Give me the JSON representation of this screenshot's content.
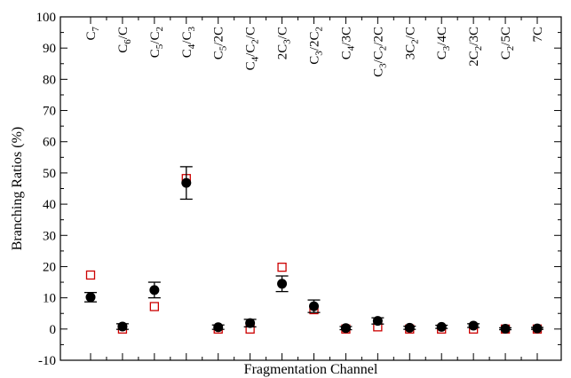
{
  "chart_data": {
    "type": "scatter",
    "title": "",
    "xlabel": "Fragmentation Channel",
    "ylabel": "Branching Ratios (%)",
    "ylim": [
      -10,
      100
    ],
    "yticks": [
      -10,
      0,
      10,
      20,
      30,
      40,
      50,
      60,
      70,
      80,
      90,
      100
    ],
    "grid": false,
    "legend": "none",
    "categories": [
      "C_7",
      "C_6/C",
      "C_5/C_2",
      "C_4/C_3",
      "C_5/2C",
      "C_4/C_2/C",
      "2C_3/C",
      "C_3/2C_2",
      "C_4/3C",
      "C_3/C_2/2C",
      "3C_2/C",
      "C_3/4C",
      "2C_2/3C",
      "C_2/5C",
      "7C"
    ],
    "series": [
      {
        "marker": "filled-circle",
        "color": "#000000",
        "values": [
          10.2,
          0.8,
          12.5,
          46.8,
          0.6,
          1.9,
          14.5,
          7.3,
          0.3,
          2.6,
          0.4,
          0.7,
          1.1,
          0.1,
          0.2
        ],
        "errors": [
          1.5,
          0.9,
          2.5,
          5.2,
          0.7,
          1.2,
          2.5,
          2.0,
          0.5,
          1.0,
          0.5,
          0.5,
          0.6,
          0.3,
          0.3
        ]
      },
      {
        "marker": "open-square",
        "color": "#cc0000",
        "values": [
          17.3,
          0.0,
          7.2,
          48.2,
          0.0,
          0.0,
          19.8,
          6.2,
          0.0,
          0.7,
          0.0,
          0.0,
          0.0,
          0.0,
          0.0
        ]
      }
    ]
  }
}
